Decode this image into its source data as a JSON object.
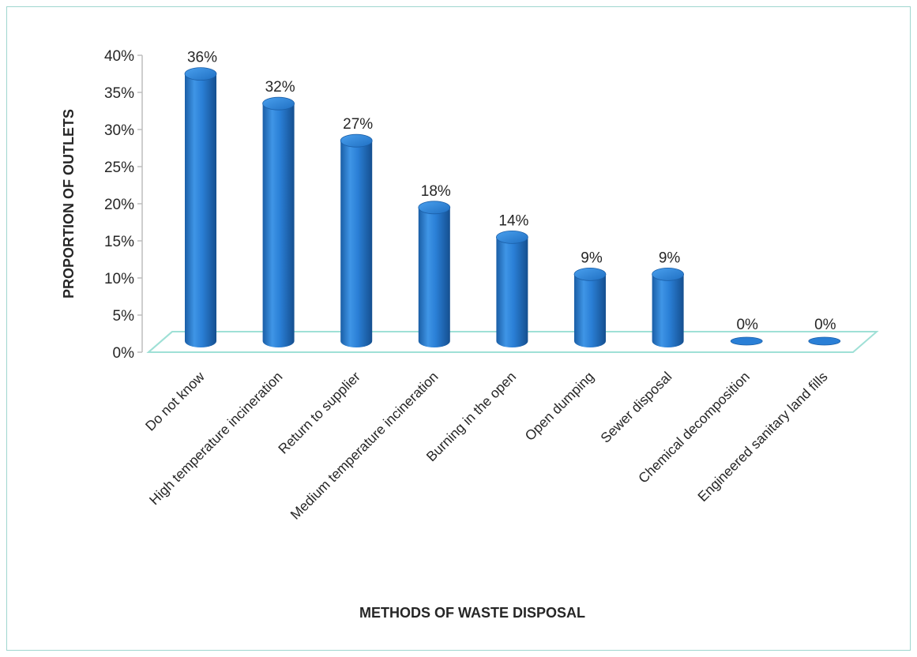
{
  "chart_data": {
    "type": "bar",
    "style": "3d-cylinder",
    "categories": [
      "Do not know",
      "High temperature incineration",
      "Return to supplier",
      "Medium temperature incineration",
      "Burning in the open",
      "Open dumping",
      "Sewer disposal",
      "Chemical decomposition",
      "Engineered sanitary land fills"
    ],
    "values": [
      36,
      32,
      27,
      18,
      14,
      9,
      9,
      0,
      0
    ],
    "data_labels": [
      "36%",
      "32%",
      "27%",
      "18%",
      "14%",
      "9%",
      "9%",
      "0%",
      "0%"
    ],
    "xlabel": "METHODS OF WASTE DISPOSAL",
    "ylabel": "PROPORTION OF OUTLETS",
    "ylim": [
      0,
      40
    ],
    "yticks": [
      "0%",
      "5%",
      "10%",
      "15%",
      "20%",
      "25%",
      "30%",
      "35%",
      "40%"
    ],
    "grid": false,
    "legend": "none",
    "colors": {
      "bar": "#2a7fd6",
      "bar_dark": "#1b5fa8",
      "bar_light": "#5aa9ef",
      "floor": "#9fe0d6",
      "frame": "#9fd6cf"
    }
  }
}
